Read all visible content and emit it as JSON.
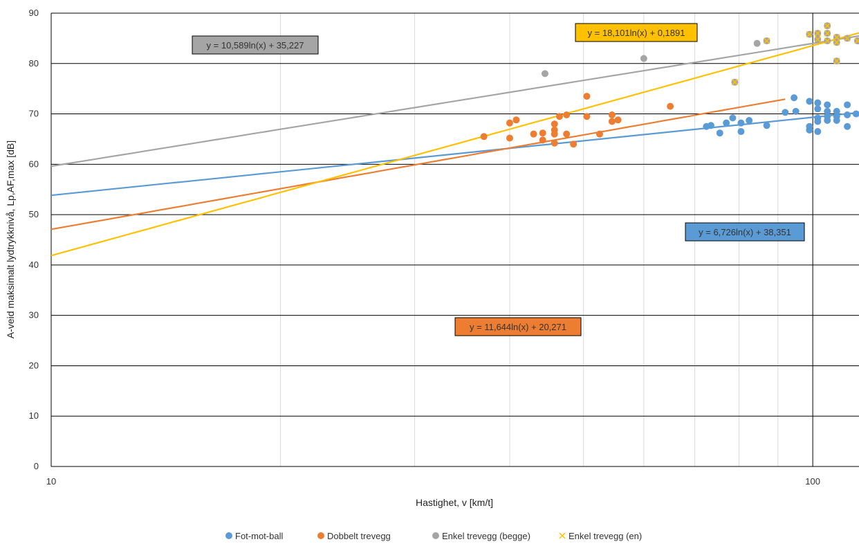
{
  "chart_data": {
    "type": "scatter",
    "title": "",
    "xlabel": "Hastighet, v [km/t]",
    "ylabel": "A-veid maksimalt lydtrykknivå, Lp,AF,max [dB]",
    "x_scale": "log",
    "xlim": [
      10,
      115
    ],
    "ylim": [
      0,
      90
    ],
    "x_tick_labels": [
      "10",
      "100"
    ],
    "y_ticks": [
      0,
      10,
      20,
      30,
      40,
      50,
      60,
      70,
      80,
      90
    ],
    "grid": true,
    "legend_position": "bottom",
    "series": [
      {
        "name": "Fot-mot-ball",
        "color": "#5B9BD5",
        "marker": "circle",
        "points": [
          [
            72.5,
            67.5
          ],
          [
            73.5,
            67.7
          ],
          [
            75.5,
            66.2
          ],
          [
            77,
            68.2
          ],
          [
            78.5,
            69.2
          ],
          [
            80.5,
            66.5
          ],
          [
            80.5,
            68.2
          ],
          [
            82.5,
            68.7
          ],
          [
            87,
            67.7
          ],
          [
            92,
            70.3
          ],
          [
            94.5,
            73.2
          ],
          [
            95,
            70.5
          ],
          [
            99,
            72.5
          ],
          [
            99,
            67.5
          ],
          [
            99,
            66.8
          ],
          [
            101.5,
            72.2
          ],
          [
            101.5,
            71.0
          ],
          [
            101.5,
            69.2
          ],
          [
            101.5,
            68.5
          ],
          [
            101.5,
            66.5
          ],
          [
            104.5,
            71.8
          ],
          [
            104.5,
            70.5
          ],
          [
            104.5,
            69.5
          ],
          [
            104.5,
            68.7
          ],
          [
            107.5,
            70.5
          ],
          [
            107.5,
            69.5
          ],
          [
            107.5,
            68.7
          ],
          [
            111,
            71.8
          ],
          [
            111,
            69.8
          ],
          [
            111,
            67.5
          ],
          [
            114,
            70.0
          ]
        ],
        "trendline": {
          "a": 6.726,
          "b": 38.351,
          "x_range": [
            10,
            115
          ],
          "label": "y = 6,726ln(x) + 38,351"
        }
      },
      {
        "name": "Dobbelt trevegg",
        "color": "#ED7D31",
        "marker": "circle",
        "points": [
          [
            37,
            65.5
          ],
          [
            40,
            65.2
          ],
          [
            40,
            68.2
          ],
          [
            40.8,
            68.8
          ],
          [
            43,
            66.0
          ],
          [
            44.2,
            66.2
          ],
          [
            44.2,
            64.8
          ],
          [
            45.8,
            68.0
          ],
          [
            45.8,
            66.8
          ],
          [
            45.8,
            66.0
          ],
          [
            45.8,
            64.2
          ],
          [
            46.5,
            69.5
          ],
          [
            47.5,
            69.8
          ],
          [
            47.5,
            66.0
          ],
          [
            48.5,
            64.0
          ],
          [
            50.5,
            73.5
          ],
          [
            50.5,
            69.5
          ],
          [
            52.5,
            66.0
          ],
          [
            54.5,
            69.8
          ],
          [
            54.5,
            68.5
          ],
          [
            55.5,
            68.8
          ],
          [
            65,
            71.5
          ]
        ],
        "trendline": {
          "a": 11.644,
          "b": 20.271,
          "x_range": [
            10,
            92
          ],
          "label": "y = 11,644ln(x) + 20,271"
        }
      },
      {
        "name": "Enkel trevegg (begge)",
        "color": "#A5A5A5",
        "marker": "circle",
        "points": [
          [
            44.5,
            78.0
          ],
          [
            60,
            81.0
          ],
          [
            84.5,
            84.0
          ],
          [
            87,
            84.5
          ],
          [
            99,
            85.8
          ],
          [
            101.5,
            86.0
          ],
          [
            101.5,
            84.8
          ],
          [
            104.5,
            87.5
          ],
          [
            104.5,
            86.0
          ],
          [
            104.5,
            84.5
          ],
          [
            107.5,
            85.2
          ],
          [
            107.5,
            84.2
          ],
          [
            107.5,
            80.5
          ],
          [
            111,
            85.0
          ],
          [
            114.5,
            84.5
          ],
          [
            79,
            76.3
          ]
        ],
        "trendline": {
          "a": 10.589,
          "b": 35.227,
          "x_range": [
            10,
            115
          ],
          "label": "y = 10,589ln(x) + 35,227"
        }
      },
      {
        "name": "Enkel trevegg (en)",
        "color": "#FFC000",
        "marker": "x",
        "points": [
          [
            79,
            76.3
          ],
          [
            87,
            84.5
          ],
          [
            99,
            85.8
          ],
          [
            101.5,
            86.0
          ],
          [
            101.5,
            84.8
          ],
          [
            104.5,
            87.5
          ],
          [
            104.5,
            86.0
          ],
          [
            104.5,
            84.5
          ],
          [
            107.5,
            85.2
          ],
          [
            107.5,
            84.2
          ],
          [
            107.5,
            80.5
          ],
          [
            111,
            85.0
          ],
          [
            114.5,
            84.5
          ]
        ],
        "trendline": {
          "a": 18.101,
          "b": 0.1891,
          "x_range": [
            10,
            115
          ],
          "label": "y = 18,101ln(x) + 0,1891"
        }
      }
    ]
  }
}
